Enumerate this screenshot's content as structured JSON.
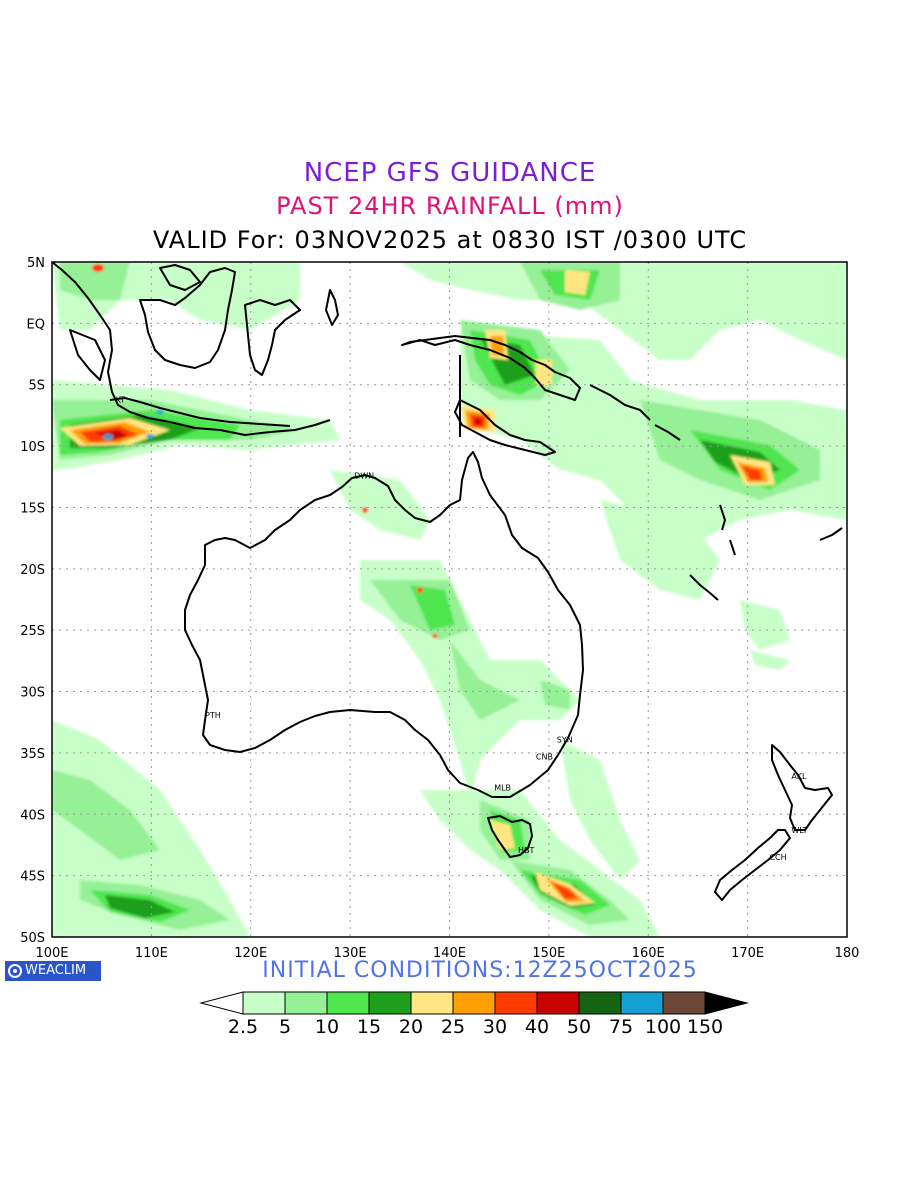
{
  "header": {
    "title": "NCEP GFS GUIDANCE",
    "subtitle": "PAST 24HR RAINFALL (mm)",
    "valid": "VALID For: 03NOV2025 at 0830 IST /0300 UTC"
  },
  "colors": {
    "title": "#7b1fd6",
    "subtitle": "#e0107a",
    "initial": "#4f73e8",
    "logo_bg": "#2a55c9"
  },
  "map": {
    "lon_range": [
      100,
      180
    ],
    "lat_range": [
      -50,
      5
    ],
    "lon_ticks": [
      "100E",
      "110E",
      "120E",
      "130E",
      "140E",
      "150E",
      "160E",
      "170E",
      "180"
    ],
    "lat_ticks": [
      "5N",
      "EQ",
      "5S",
      "10S",
      "15S",
      "20S",
      "25S",
      "30S",
      "35S",
      "40S",
      "45S",
      "50S"
    ],
    "grid": true,
    "stations": [
      {
        "label": "KT",
        "lon": 106.8,
        "lat": -6.2
      },
      {
        "label": "DWN",
        "lon": 130.8,
        "lat": -12.4
      },
      {
        "label": "PTH",
        "lon": 115.8,
        "lat": -31.9
      },
      {
        "label": "SYN",
        "lon": 151.2,
        "lat": -33.9
      },
      {
        "label": "CNB",
        "lon": 149.1,
        "lat": -35.3
      },
      {
        "label": "MLB",
        "lon": 144.9,
        "lat": -37.8
      },
      {
        "label": "HBT",
        "lon": 147.3,
        "lat": -42.9
      },
      {
        "label": "AKL",
        "lon": 174.8,
        "lat": -36.9
      },
      {
        "label": "WLT",
        "lon": 174.8,
        "lat": -41.3
      },
      {
        "label": "CCH",
        "lon": 172.6,
        "lat": -43.5
      }
    ]
  },
  "initial_conditions": "INITIAL CONDITIONS:12Z25OCT2025",
  "logo": {
    "text": "WEACLIM",
    "icon": "weaclim-logo-icon"
  },
  "colorbar": {
    "levels": [
      "2.5",
      "5",
      "10",
      "15",
      "20",
      "25",
      "30",
      "40",
      "50",
      "75",
      "100",
      "150"
    ],
    "colors": [
      "#ffffff",
      "#c8ffc8",
      "#96f096",
      "#50e650",
      "#1ea01e",
      "#ffe682",
      "#ffa000",
      "#ff3c00",
      "#c80000",
      "#146414",
      "#14a0d2",
      "#6e4637",
      "#000000"
    ]
  }
}
